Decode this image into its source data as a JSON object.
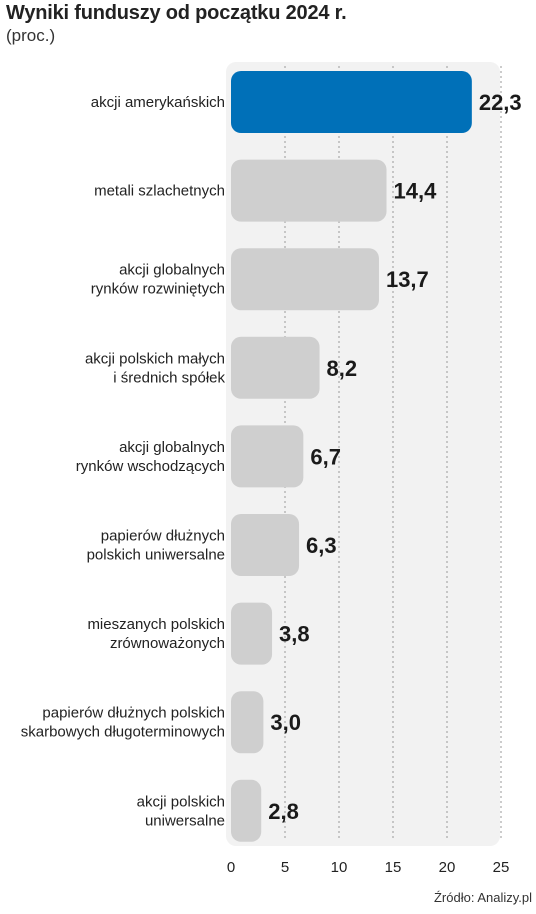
{
  "title": "Wyniki funduszy od początku 2024 r.",
  "subtitle": "(proc.)",
  "source": "Źródło: Analizy.pl",
  "colors": {
    "highlight": "#0070b8",
    "bar": "#cfcfcf",
    "panel": "#f2f2f2",
    "grid": "#9a9a9a"
  },
  "chart_data": {
    "type": "bar",
    "orientation": "horizontal",
    "categories": [
      [
        "akcji amerykańskich"
      ],
      [
        "metali szlachetnych"
      ],
      [
        "akcji globalnych",
        "rynków rozwiniętych"
      ],
      [
        "akcji polskich małych",
        "i średnich spółek"
      ],
      [
        "akcji globalnych",
        "rynków wschodzących"
      ],
      [
        "papierów dłużnych",
        "polskich uniwersalne"
      ],
      [
        "mieszanych polskich",
        "zrównoważonych"
      ],
      [
        "papierów dłużnych polskich",
        "skarbowych długoterminowych"
      ],
      [
        "akcji polskich",
        "uniwersalne"
      ]
    ],
    "values": [
      22.3,
      14.4,
      13.7,
      8.2,
      6.7,
      6.3,
      3.8,
      3.0,
      2.8
    ],
    "value_labels": [
      "22,3",
      "14,4",
      "13,7",
      "8,2",
      "6,7",
      "6,3",
      "3,8",
      "3,0",
      "2,8"
    ],
    "highlight_index": 0,
    "xlim": [
      0,
      25
    ],
    "xticks": [
      0,
      5,
      10,
      15,
      20,
      25
    ],
    "grid": "vertical dotted"
  }
}
